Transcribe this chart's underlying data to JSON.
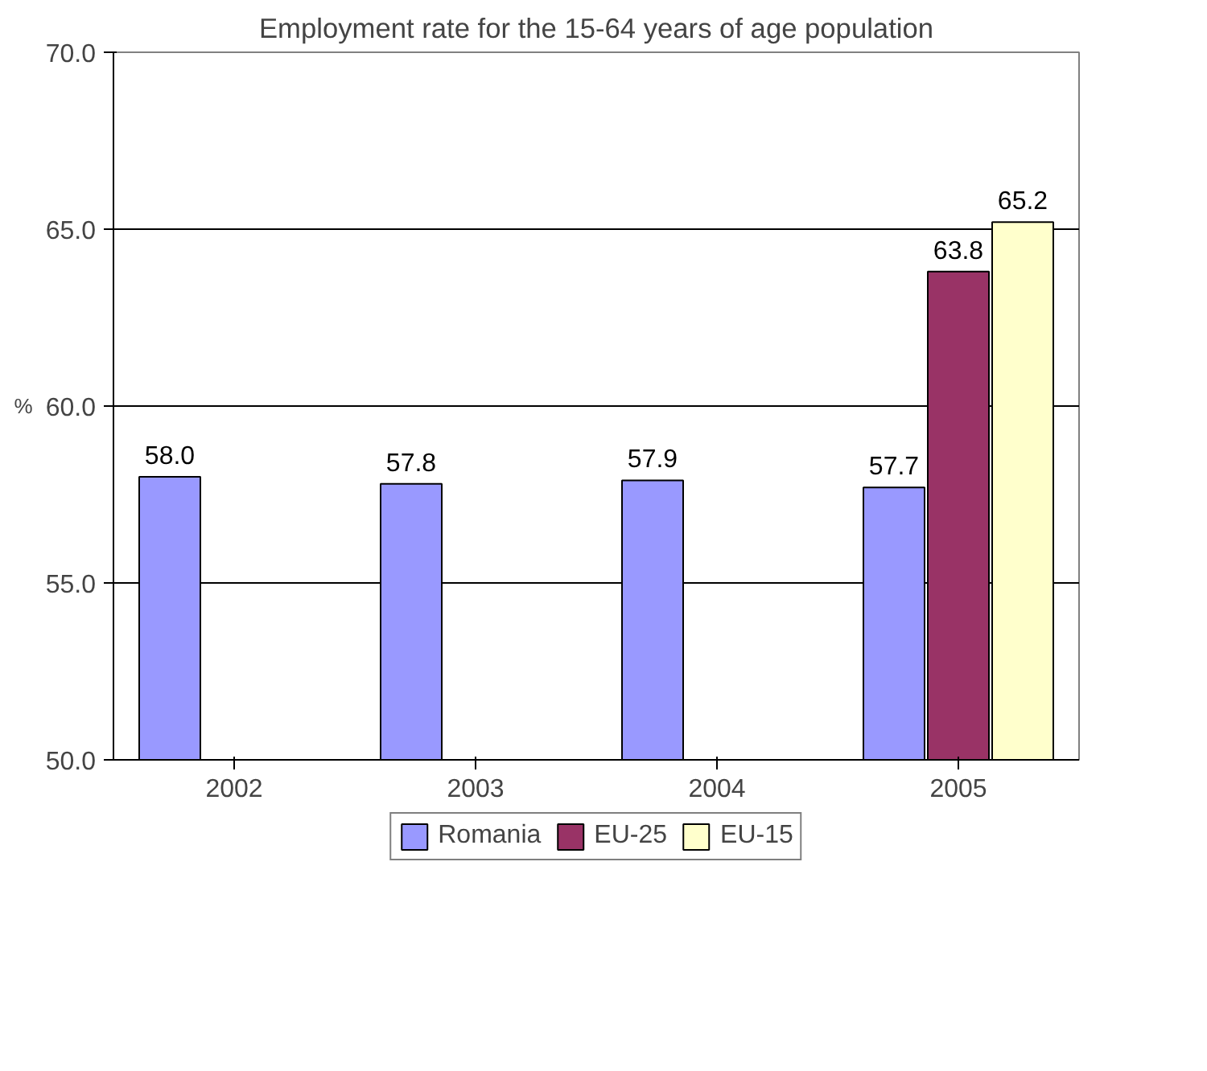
{
  "chart_data": {
    "type": "bar",
    "title": "Employment rate for the 15-64 years of age population",
    "ylabel": "%",
    "categories": [
      "2002",
      "2003",
      "2004",
      "2005"
    ],
    "series": [
      {
        "name": "Romania",
        "color": "#9999ff",
        "values": [
          58.0,
          57.8,
          57.9,
          57.7
        ],
        "value_labels": [
          "58.0",
          "57.8",
          "57.9",
          "57.7"
        ]
      },
      {
        "name": "EU-25",
        "color": "#993366",
        "values": [
          null,
          null,
          null,
          63.8
        ],
        "value_labels": [
          null,
          null,
          null,
          "63.8"
        ]
      },
      {
        "name": "EU-15",
        "color": "#ffffcc",
        "values": [
          null,
          null,
          null,
          65.2
        ],
        "value_labels": [
          null,
          null,
          null,
          "65.2"
        ]
      }
    ],
    "ylim": [
      50,
      70
    ],
    "yticks": [
      {
        "value": 50,
        "label": "50.0"
      },
      {
        "value": 55,
        "label": "55.0"
      },
      {
        "value": 60,
        "label": "60.0"
      },
      {
        "value": 65,
        "label": "65.0"
      },
      {
        "value": 70,
        "label": "70.0"
      }
    ],
    "grid": "y",
    "legend": "bottom"
  }
}
